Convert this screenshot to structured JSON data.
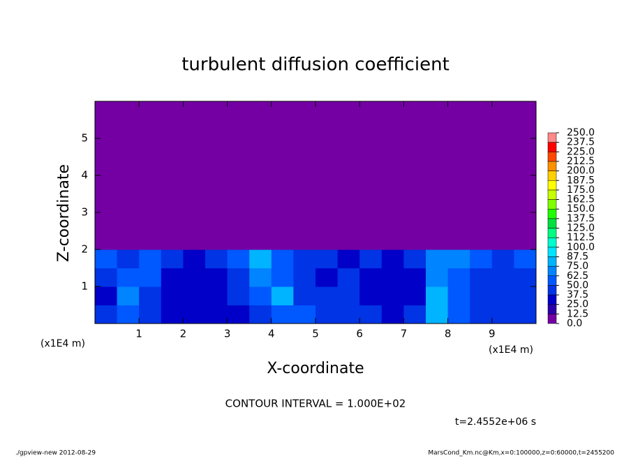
{
  "chart_data": {
    "type": "contour",
    "title": "turbulent diffusion coefficient",
    "xlabel": "X-coordinate",
    "ylabel": "Z-coordinate",
    "xunit": "(x1E4 m)",
    "yunit": "(x1E4 m)",
    "xlim": [
      0,
      10
    ],
    "ylim": [
      0,
      6
    ],
    "xticks": [
      1,
      2,
      3,
      4,
      5,
      6,
      7,
      8,
      9
    ],
    "yticks": [
      1,
      2,
      3,
      4,
      5
    ],
    "levels": [
      {
        "value": 0,
        "label": "0.0"
      },
      {
        "value": 12.5,
        "label": "12.5"
      },
      {
        "value": 25,
        "label": "25.0"
      },
      {
        "value": 37.5,
        "label": "37.5"
      },
      {
        "value": 50,
        "label": "50.0"
      },
      {
        "value": 62.5,
        "label": "62.5"
      },
      {
        "value": 75,
        "label": "75.0"
      },
      {
        "value": 87.5,
        "label": "87.5"
      },
      {
        "value": 100,
        "label": "100.0"
      },
      {
        "value": 112.5,
        "label": "112.5"
      },
      {
        "value": 125,
        "label": "125.0"
      },
      {
        "value": 137.5,
        "label": "137.5"
      },
      {
        "value": 150,
        "label": "150.0"
      },
      {
        "value": 162.5,
        "label": "162.5"
      },
      {
        "value": 175,
        "label": "175.0"
      },
      {
        "value": 187.5,
        "label": "187.5"
      },
      {
        "value": 200,
        "label": "200.0"
      },
      {
        "value": 212.5,
        "label": "212.5"
      },
      {
        "value": 225,
        "label": "225.0"
      },
      {
        "value": 237.5,
        "label": "237.5"
      },
      {
        "value": 250,
        "label": "250.0"
      }
    ],
    "colors": [
      "#7400a4",
      "#2c00a8",
      "#0000c8",
      "#0034e4",
      "#0058ff",
      "#0084ff",
      "#00b4ff",
      "#00e4ff",
      "#00ffcc",
      "#00ff80",
      "#00e040",
      "#20ff00",
      "#80ff00",
      "#c8ff00",
      "#ffff00",
      "#ffd000",
      "#ff9000",
      "#ff4800",
      "#ff0000",
      "#ff8888"
    ],
    "field": [
      [
        40,
        60,
        45,
        35,
        35,
        30,
        35,
        40,
        50,
        60,
        45,
        45,
        40,
        35,
        40,
        80,
        50,
        45,
        40,
        40
      ],
      [
        35,
        70,
        40,
        30,
        30,
        30,
        40,
        50,
        80,
        45,
        40,
        45,
        35,
        30,
        35,
        85,
        50,
        40,
        45,
        40
      ],
      [
        45,
        60,
        50,
        35,
        30,
        35,
        40,
        70,
        60,
        40,
        35,
        40,
        35,
        30,
        35,
        70,
        60,
        45,
        40,
        45
      ],
      [
        50,
        45,
        60,
        40,
        35,
        40,
        50,
        75,
        55,
        45,
        40,
        35,
        40,
        35,
        45,
        65,
        70,
        50,
        45,
        50
      ],
      [
        0,
        0,
        0,
        0,
        0,
        0,
        0,
        0,
        0,
        0,
        0,
        0,
        0,
        0,
        0,
        0,
        0,
        0,
        0,
        0
      ],
      [
        0,
        0,
        0,
        0,
        0,
        0,
        0,
        0,
        0,
        0,
        0,
        0,
        0,
        0,
        0,
        0,
        0,
        0,
        0,
        0
      ],
      [
        0,
        0,
        0,
        0,
        0,
        0,
        0,
        0,
        0,
        0,
        0,
        0,
        0,
        0,
        0,
        0,
        0,
        0,
        0,
        0
      ],
      [
        0,
        0,
        0,
        0,
        0,
        0,
        0,
        0,
        0,
        0,
        0,
        0,
        0,
        0,
        0,
        0,
        0,
        0,
        0,
        0
      ],
      [
        0,
        0,
        0,
        0,
        0,
        0,
        0,
        0,
        0,
        0,
        0,
        0,
        0,
        0,
        0,
        0,
        0,
        0,
        0,
        0
      ],
      [
        0,
        0,
        0,
        0,
        0,
        0,
        0,
        0,
        0,
        0,
        0,
        0,
        0,
        0,
        0,
        0,
        0,
        0,
        0,
        0
      ],
      [
        0,
        0,
        0,
        0,
        0,
        0,
        0,
        0,
        0,
        0,
        0,
        0,
        0,
        0,
        0,
        0,
        0,
        0,
        0,
        0
      ],
      [
        0,
        0,
        0,
        0,
        0,
        0,
        0,
        0,
        0,
        0,
        0,
        0,
        0,
        0,
        0,
        0,
        0,
        0,
        0,
        0
      ]
    ],
    "interval": "CONTOUR INTERVAL = 1.000E+02",
    "time": "t=2.4552e+06 s",
    "footer_left": "./gpview-new  2012-08-29",
    "footer_right": "MarsCond_Km.nc@Km,x=0:100000,z=0:60000,t=2455200"
  }
}
